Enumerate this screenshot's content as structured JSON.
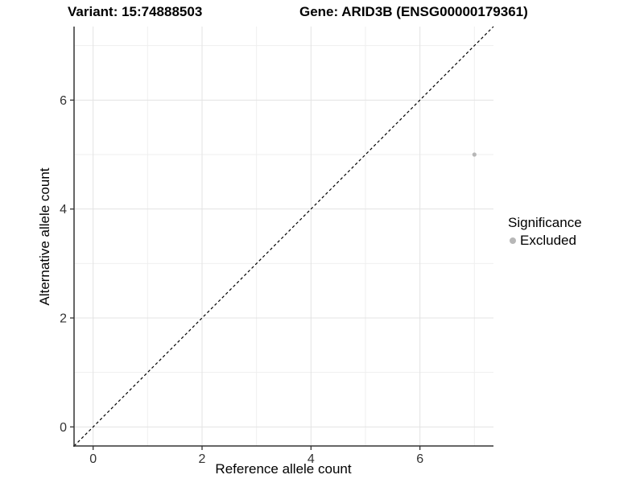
{
  "header": {
    "variant_title": "Variant: 15:74888503",
    "gene_title": "Gene: ARID3B (ENSG00000179361)"
  },
  "chart_data": {
    "type": "scatter",
    "xlabel": "Reference allele count",
    "ylabel": "Alternative allele count",
    "xlim": [
      -0.35,
      7.35
    ],
    "ylim": [
      -0.35,
      7.35
    ],
    "x_major_ticks": [
      0,
      2,
      4,
      6
    ],
    "y_major_ticks": [
      0,
      2,
      4,
      6
    ],
    "x_minor_gridlines": [
      1,
      3,
      5,
      7
    ],
    "y_minor_gridlines": [
      1,
      3,
      5,
      7
    ],
    "points": [
      {
        "x": 7,
        "y": 5,
        "series": "Excluded"
      }
    ],
    "identity_line": {
      "slope": 1,
      "intercept": 0,
      "style": "dashed"
    },
    "legend": {
      "title": "Significance",
      "position": "right",
      "items": [
        {
          "label": "Excluded",
          "color": "#b7b7b7"
        }
      ]
    },
    "grid": "on"
  },
  "colors": {
    "background": "#ffffff",
    "point": "#b7b7b7",
    "grid_major": "#e3e3e3",
    "grid_minor": "#efefef",
    "axis_line": "#333333",
    "tick_label": "#333333",
    "dashed_line": "#000000"
  }
}
